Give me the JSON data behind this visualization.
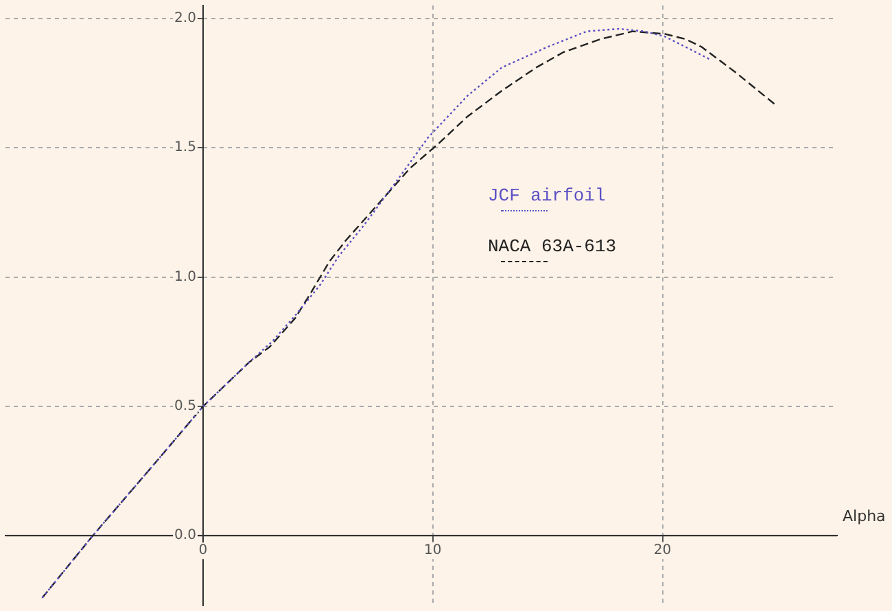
{
  "chart_data": {
    "type": "line",
    "xlabel": "Alpha",
    "xlim": [
      -8.6,
      27.6
    ],
    "ylim": [
      -0.27,
      2.05
    ],
    "xticks": [
      0,
      10,
      20
    ],
    "yticks": [
      {
        "value": 0,
        "label": "0.0"
      },
      0.5,
      {
        "value": 1,
        "label": "1.0"
      },
      1.5,
      {
        "value": 2,
        "label": "2.0"
      }
    ],
    "grid": true,
    "legend": "right",
    "marker": "none",
    "series": [
      {
        "name": "JCF airfoil",
        "color": "#5b4fc4",
        "line_style": "dotted",
        "x": [
          -7,
          -4.8,
          -2,
          0,
          2,
          3,
          4,
          5.1,
          5.9,
          7,
          8.5,
          9.8,
          11.5,
          13,
          15,
          16.7,
          18.1,
          19.2,
          20.1,
          21,
          22.1
        ],
        "values": [
          -0.24,
          0,
          0.29,
          0.5,
          0.67,
          0.75,
          0.85,
          0.97,
          1.08,
          1.2,
          1.38,
          1.54,
          1.7,
          1.81,
          1.89,
          1.95,
          1.96,
          1.95,
          1.93,
          1.89,
          1.84
        ]
      },
      {
        "name": "NACA 63A-613",
        "color": "#222222",
        "line_style": "dashed",
        "x": [
          -7,
          -4.8,
          -2,
          0,
          2,
          2.9,
          4,
          4.7,
          5.5,
          6.2,
          7.5,
          9,
          10.3,
          11.5,
          13,
          14.5,
          15.7,
          17.3,
          18.7,
          20.1,
          21,
          21.7,
          23.2,
          25
        ],
        "values": [
          -0.24,
          0,
          0.29,
          0.5,
          0.67,
          0.73,
          0.84,
          0.94,
          1.06,
          1.14,
          1.27,
          1.42,
          1.52,
          1.62,
          1.72,
          1.81,
          1.87,
          1.92,
          1.95,
          1.94,
          1.92,
          1.89,
          1.79,
          1.66
        ]
      }
    ]
  }
}
